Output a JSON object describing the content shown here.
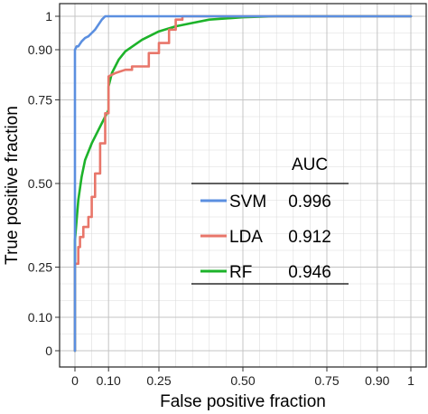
{
  "chart_data": {
    "type": "line",
    "xlabel": "False positive fraction",
    "ylabel": "True positive fraction",
    "xlim": [
      0,
      1
    ],
    "ylim": [
      0,
      1
    ],
    "x_ticks": [
      0,
      0.1,
      0.25,
      0.5,
      0.75,
      0.9,
      1
    ],
    "x_tick_labels": [
      "0",
      "0.10",
      "0.25",
      "0.50",
      "0.75",
      "0.90",
      "1"
    ],
    "y_ticks": [
      0,
      0.1,
      0.25,
      0.5,
      0.75,
      0.9,
      1
    ],
    "y_tick_labels": [
      "0",
      "0.10",
      "0.25",
      "0.50",
      "0.75",
      "0.90",
      "1"
    ],
    "grid": true,
    "legend": {
      "placement": "lower-right",
      "header": "AUC"
    },
    "series": [
      {
        "name": "SVM",
        "auc": "0.996",
        "color": "#5b8fe0",
        "x": [
          0,
          0,
          0,
          0.005,
          0.01,
          0.02,
          0.03,
          0.04,
          0.05,
          0.06,
          0.07,
          0.08,
          0.09,
          0.1,
          0.15,
          0.2,
          0.25,
          0.3,
          0.4,
          0.5,
          0.6,
          0.75,
          0.9,
          1
        ],
        "y": [
          0,
          0.39,
          0.9,
          0.91,
          0.91,
          0.925,
          0.935,
          0.94,
          0.95,
          0.96,
          0.975,
          0.99,
          1.0,
          1.0,
          1.0,
          1.0,
          1.0,
          1.0,
          1.0,
          1.0,
          1.0,
          1.0,
          1.0,
          1.0
        ]
      },
      {
        "name": "LDA",
        "auc": "0.912",
        "color": "#e8766a",
        "x": [
          0,
          0,
          0.005,
          0.01,
          0.01,
          0.015,
          0.015,
          0.025,
          0.025,
          0.04,
          0.04,
          0.05,
          0.05,
          0.06,
          0.06,
          0.075,
          0.075,
          0.09,
          0.09,
          0.1,
          0.1,
          0.12,
          0.15,
          0.17,
          0.17,
          0.22,
          0.22,
          0.25,
          0.25,
          0.28,
          0.28,
          0.3,
          0.3,
          0.32,
          0.32,
          0.35,
          0.4,
          0.5,
          0.6,
          0.75,
          0.9,
          1
        ],
        "y": [
          0,
          0.26,
          0.26,
          0.26,
          0.31,
          0.31,
          0.34,
          0.34,
          0.37,
          0.37,
          0.4,
          0.4,
          0.46,
          0.46,
          0.53,
          0.53,
          0.62,
          0.62,
          0.71,
          0.71,
          0.82,
          0.83,
          0.84,
          0.84,
          0.85,
          0.85,
          0.89,
          0.89,
          0.92,
          0.92,
          0.96,
          0.96,
          0.99,
          0.99,
          1.0,
          1.0,
          1.0,
          1.0,
          1.0,
          1.0,
          1.0,
          1.0
        ]
      },
      {
        "name": "RF",
        "auc": "0.946",
        "color": "#1db32a",
        "x": [
          0,
          0,
          0.01,
          0.02,
          0.03,
          0.05,
          0.07,
          0.09,
          0.1,
          0.1,
          0.11,
          0.13,
          0.15,
          0.2,
          0.25,
          0.3,
          0.35,
          0.4,
          0.5,
          0.6,
          0.75,
          0.9,
          1
        ],
        "y": [
          0,
          0.33,
          0.45,
          0.52,
          0.57,
          0.62,
          0.66,
          0.7,
          0.72,
          0.79,
          0.83,
          0.87,
          0.895,
          0.93,
          0.955,
          0.97,
          0.98,
          0.99,
          0.997,
          1.0,
          1.0,
          1.0,
          1.0
        ]
      }
    ]
  }
}
